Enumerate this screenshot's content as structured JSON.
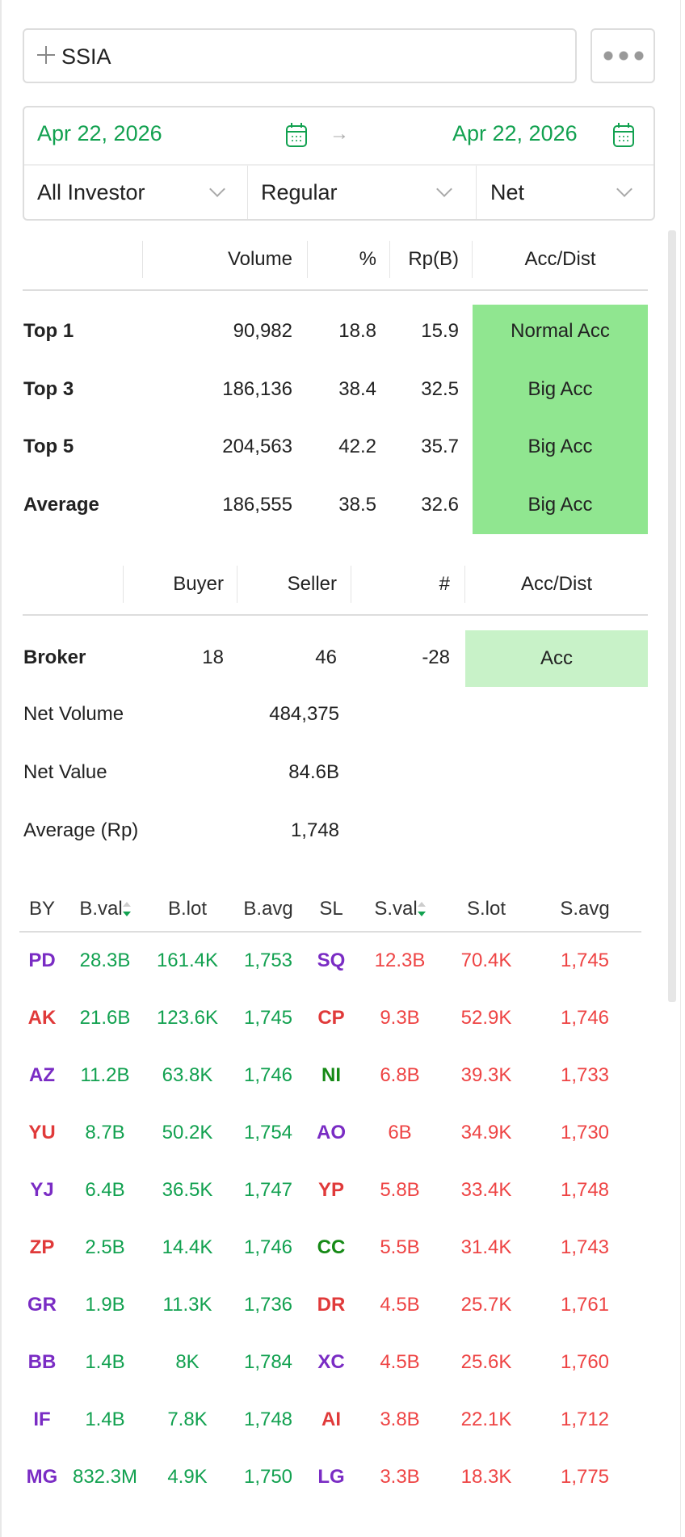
{
  "search": {
    "value": "SSIA",
    "icon": "plus-icon"
  },
  "more_icon": "more-icon",
  "dates": {
    "start": "Apr 22, 2026",
    "end": "Apr 22, 2026"
  },
  "filters": {
    "investor": "All Investor",
    "market": "Regular",
    "mode": "Net"
  },
  "summary": {
    "headers": [
      "Volume",
      "%",
      "Rp(B)",
      "Acc/Dist"
    ],
    "rows": [
      {
        "label": "Top 1",
        "volume": "90,982",
        "pct": "18.8",
        "rp": "15.9",
        "status": "Normal Acc"
      },
      {
        "label": "Top 3",
        "volume": "186,136",
        "pct": "38.4",
        "rp": "32.5",
        "status": "Big Acc"
      },
      {
        "label": "Top 5",
        "volume": "204,563",
        "pct": "42.2",
        "rp": "35.7",
        "status": "Big Acc"
      },
      {
        "label": "Average",
        "volume": "186,555",
        "pct": "38.5",
        "rp": "32.6",
        "status": "Big Acc"
      }
    ]
  },
  "broker_summary": {
    "headers": [
      "Buyer",
      "Seller",
      "#",
      "Acc/Dist"
    ],
    "label": "Broker",
    "buyer": "18",
    "seller": "46",
    "net": "-28",
    "status": "Acc",
    "net_volume_label": "Net Volume",
    "net_volume": "484,375",
    "net_value_label": "Net Value",
    "net_value": "84.6B",
    "average_label": "Average (Rp)",
    "average": "1,748"
  },
  "colors": {
    "accent": "#12a150",
    "big_acc": "#90e690",
    "acc": "#c8f2c8",
    "sell": "#ee4444"
  },
  "brokers": {
    "headers": [
      "BY",
      "B.val",
      "B.lot",
      "B.avg",
      "SL",
      "S.val",
      "S.lot",
      "S.avg"
    ],
    "rows": [
      {
        "by": "PD",
        "bc": "pur",
        "bval": "28.3B",
        "blot": "161.4K",
        "bavg": "1,753",
        "sl": "SQ",
        "sc": "pur",
        "sval": "12.3B",
        "slot": "70.4K",
        "savg": "1,745"
      },
      {
        "by": "AK",
        "bc": "red",
        "bval": "21.6B",
        "blot": "123.6K",
        "bavg": "1,745",
        "sl": "CP",
        "sc": "red",
        "sval": "9.3B",
        "slot": "52.9K",
        "savg": "1,746"
      },
      {
        "by": "AZ",
        "bc": "pur",
        "bval": "11.2B",
        "blot": "63.8K",
        "bavg": "1,746",
        "sl": "NI",
        "sc": "dg",
        "sval": "6.8B",
        "slot": "39.3K",
        "savg": "1,733"
      },
      {
        "by": "YU",
        "bc": "red",
        "bval": "8.7B",
        "blot": "50.2K",
        "bavg": "1,754",
        "sl": "AO",
        "sc": "pur",
        "sval": "6B",
        "slot": "34.9K",
        "savg": "1,730"
      },
      {
        "by": "YJ",
        "bc": "pur",
        "bval": "6.4B",
        "blot": "36.5K",
        "bavg": "1,747",
        "sl": "YP",
        "sc": "red",
        "sval": "5.8B",
        "slot": "33.4K",
        "savg": "1,748"
      },
      {
        "by": "ZP",
        "bc": "red",
        "bval": "2.5B",
        "blot": "14.4K",
        "bavg": "1,746",
        "sl": "CC",
        "sc": "dg",
        "sval": "5.5B",
        "slot": "31.4K",
        "savg": "1,743"
      },
      {
        "by": "GR",
        "bc": "pur",
        "bval": "1.9B",
        "blot": "11.3K",
        "bavg": "1,736",
        "sl": "DR",
        "sc": "red",
        "sval": "4.5B",
        "slot": "25.7K",
        "savg": "1,761"
      },
      {
        "by": "BB",
        "bc": "pur",
        "bval": "1.4B",
        "blot": "8K",
        "bavg": "1,784",
        "sl": "XC",
        "sc": "pur",
        "sval": "4.5B",
        "slot": "25.6K",
        "savg": "1,760"
      },
      {
        "by": "IF",
        "bc": "pur",
        "bval": "1.4B",
        "blot": "7.8K",
        "bavg": "1,748",
        "sl": "AI",
        "sc": "red",
        "sval": "3.8B",
        "slot": "22.1K",
        "savg": "1,712"
      },
      {
        "by": "MG",
        "bc": "pur",
        "bval": "832.3M",
        "blot": "4.9K",
        "bavg": "1,750",
        "sl": "LG",
        "sc": "pur",
        "sval": "3.3B",
        "slot": "18.3K",
        "savg": "1,775"
      }
    ]
  }
}
